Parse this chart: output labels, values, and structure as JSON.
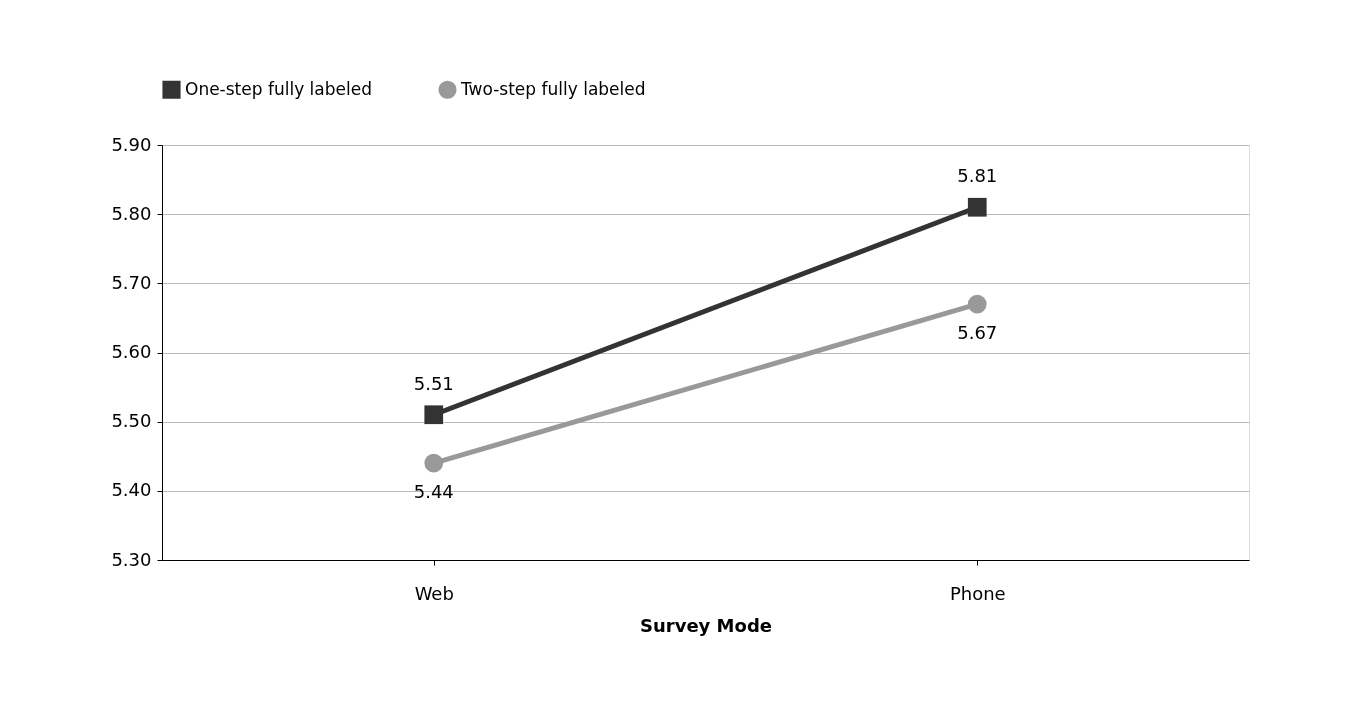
{
  "chart_data": {
    "type": "line",
    "xlabel": "Survey Mode",
    "categories": [
      "Web",
      "Phone"
    ],
    "series": [
      {
        "name": "One-step fully labeled",
        "color": "#333333",
        "marker": "square",
        "values": [
          5.51,
          5.81
        ]
      },
      {
        "name": "Two-step fully labeled",
        "color": "#999999",
        "marker": "circle",
        "values": [
          5.44,
          5.67
        ]
      }
    ],
    "ylim": [
      5.3,
      5.9
    ],
    "yticks": [
      {
        "value": 5.3,
        "label": "5.30"
      },
      {
        "value": 5.4,
        "label": "5.40"
      },
      {
        "value": 5.5,
        "label": "5.50"
      },
      {
        "value": 5.6,
        "label": "5.60"
      },
      {
        "value": 5.7,
        "label": "5.70"
      },
      {
        "value": 5.8,
        "label": "5.80"
      },
      {
        "value": 5.9,
        "label": "5.90"
      }
    ],
    "grid": "y",
    "legend": "top",
    "data_labels": true,
    "line_style": "solid"
  }
}
